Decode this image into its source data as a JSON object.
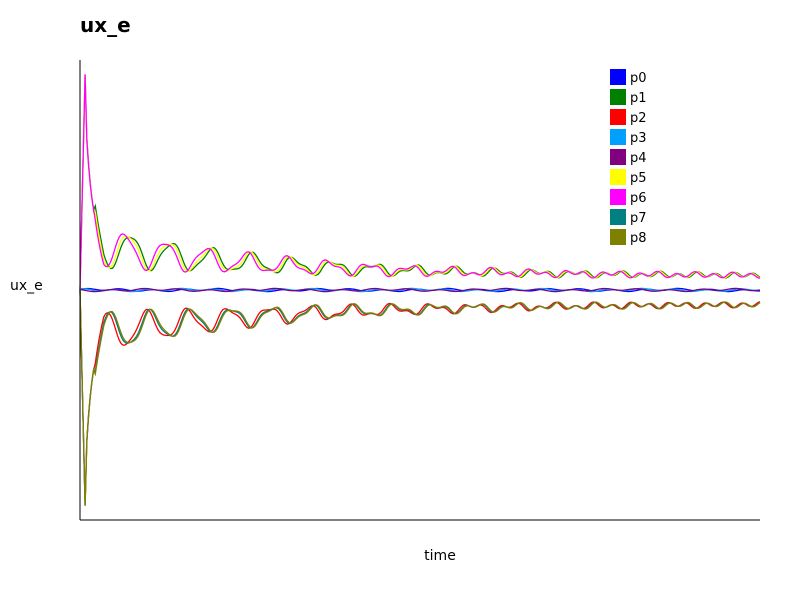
{
  "chart_data": {
    "type": "line",
    "title": "ux_e",
    "xlabel": "time",
    "ylabel": "ux_e",
    "grid": false,
    "legend_position": "top-right",
    "x_ticks_shown": false,
    "y_ticks_shown": false,
    "x_range": [
      0,
      100
    ],
    "y_range": [
      -1,
      1
    ],
    "series": [
      {
        "name": "p0",
        "color": "#0000ff",
        "profile": "flat",
        "phase": 0.3
      },
      {
        "name": "p1",
        "color": "#008000",
        "profile": "upper",
        "phase": 0.0
      },
      {
        "name": "p2",
        "color": "#ff0000",
        "profile": "lower",
        "phase": 0.7
      },
      {
        "name": "p3",
        "color": "#00a0ff",
        "profile": "flat",
        "phase": 1.1
      },
      {
        "name": "p4",
        "color": "#800080",
        "profile": "flat",
        "phase": 1.9
      },
      {
        "name": "p5",
        "color": "#ffff00",
        "profile": "upper",
        "phase": 0.4
      },
      {
        "name": "p6",
        "color": "#ff00ff",
        "profile": "upper",
        "phase": 0.9
      },
      {
        "name": "p7",
        "color": "#008080",
        "profile": "lower",
        "phase": 0.2
      },
      {
        "name": "p8",
        "color": "#808000",
        "profile": "lower",
        "phase": 0.0
      }
    ]
  }
}
